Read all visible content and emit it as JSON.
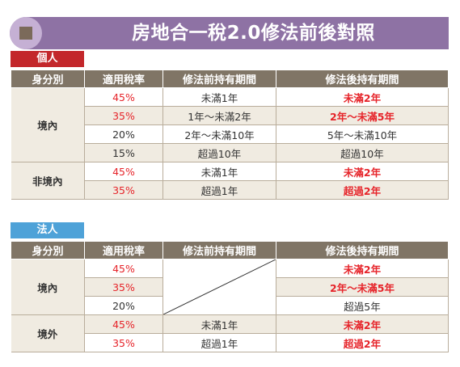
{
  "title": "房地合一稅2.0修法前後對照",
  "headers": [
    "身分別",
    "適用稅率",
    "修法前持有期間",
    "修法後持有期間"
  ],
  "sections": [
    {
      "label": "個人",
      "groups": [
        {
          "identity": "境內",
          "rows": [
            {
              "rate": "45%",
              "before": "未滿1年",
              "after": "未滿2年"
            },
            {
              "rate": "35%",
              "before": "1年～未滿2年",
              "after": "2年～未滿5年"
            },
            {
              "rate": "20%",
              "before": "2年～未滿10年",
              "after": "5年～未滿10年"
            },
            {
              "rate": "15%",
              "before": "超過10年",
              "after": "超過10年"
            }
          ]
        },
        {
          "identity": "非境內",
          "rows": [
            {
              "rate": "45%",
              "before": "未滿1年",
              "after": "未滿2年"
            },
            {
              "rate": "35%",
              "before": "超過1年",
              "after": "超過2年"
            }
          ]
        }
      ]
    },
    {
      "label": "法人",
      "groups": [
        {
          "identity": "境內",
          "rows": [
            {
              "rate": "45%",
              "before": "",
              "after": "未滿2年"
            },
            {
              "rate": "35%",
              "before": "",
              "after": "2年～未滿5年"
            },
            {
              "rate": "20%",
              "before": "",
              "after": "超過5年"
            }
          ]
        },
        {
          "identity": "境外",
          "rows": [
            {
              "rate": "45%",
              "before": "未滿1年",
              "after": "未滿2年"
            },
            {
              "rate": "35%",
              "before": "超過1年",
              "after": "超過2年"
            }
          ]
        }
      ]
    }
  ],
  "colors": {
    "banner": "#8e72a4",
    "tag_individual": "#c3272b",
    "tag_corporate": "#4ea2d8",
    "header": "#807566",
    "highlight": "#e6242a",
    "shade": "#f0ebe1"
  }
}
